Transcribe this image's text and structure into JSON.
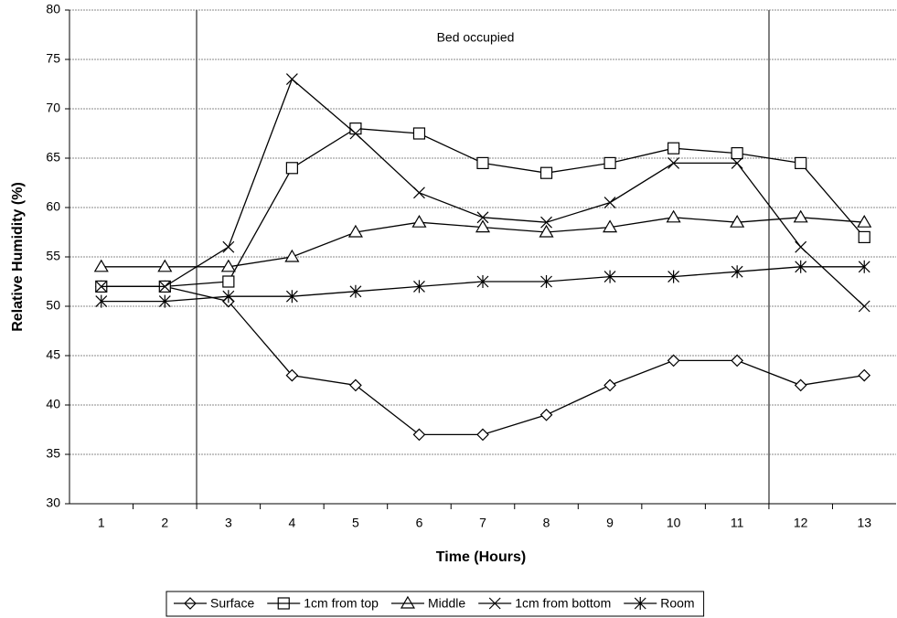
{
  "chart_data": {
    "type": "line",
    "xlabel": "Time (Hours)",
    "ylabel": "Relative Humidity (%)",
    "annotation": "Bed occupied",
    "categories": [
      "1",
      "2",
      "3",
      "4",
      "5",
      "6",
      "7",
      "8",
      "9",
      "10",
      "11",
      "12",
      "13"
    ],
    "series": [
      {
        "name": "Surface",
        "color": "#000000",
        "marker": "diamond",
        "values": [
          52,
          52,
          50.5,
          43,
          42,
          37,
          37,
          39,
          42,
          44.5,
          44.5,
          42,
          43
        ]
      },
      {
        "name": "1cm from top",
        "color": "#000000",
        "marker": "square",
        "values": [
          52,
          52,
          52.5,
          64,
          68,
          67.5,
          64.5,
          63.5,
          64.5,
          66,
          65.5,
          64.5,
          57
        ]
      },
      {
        "name": "Middle",
        "color": "#000000",
        "marker": "triangle",
        "values": [
          54,
          54,
          54,
          55,
          57.5,
          58.5,
          58,
          57.5,
          58,
          59,
          58.5,
          59,
          58.5
        ]
      },
      {
        "name": "1cm from bottom",
        "color": "#000000",
        "marker": "x",
        "values": [
          52,
          52,
          56,
          73,
          67.5,
          61.5,
          59,
          58.5,
          60.5,
          64.5,
          64.5,
          56,
          50
        ]
      },
      {
        "name": "Room",
        "color": "#000000",
        "marker": "star",
        "values": [
          50.5,
          50.5,
          51,
          51,
          51.5,
          52,
          52.5,
          52.5,
          53,
          53,
          53.5,
          54,
          54
        ]
      }
    ],
    "ylim": [
      30,
      80
    ],
    "yticks": [
      30,
      35,
      40,
      45,
      50,
      55,
      60,
      65,
      70,
      75,
      80
    ],
    "grid": true,
    "legend": "bottom"
  }
}
